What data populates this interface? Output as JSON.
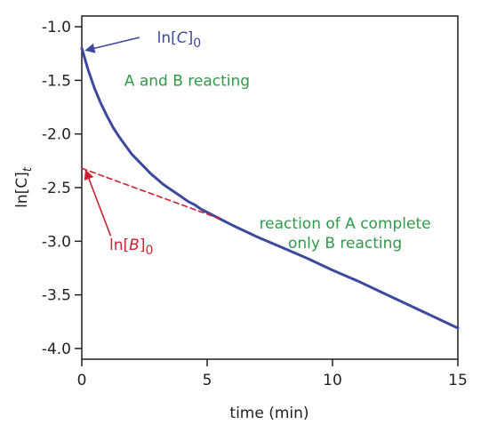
{
  "chart_data": {
    "type": "line",
    "title": "",
    "xlabel": "time (min)",
    "ylabel_main": "ln[C]",
    "ylabel_sub": "t",
    "xlim": [
      0,
      15
    ],
    "ylim": [
      -4.1,
      -0.9
    ],
    "x_ticks": [
      0,
      5,
      10,
      15
    ],
    "x_tick_labels": [
      "0",
      "5",
      "10",
      "15"
    ],
    "y_ticks": [
      -1.0,
      -1.5,
      -2.0,
      -2.5,
      -3.0,
      -3.5,
      -4.0
    ],
    "y_tick_labels": [
      "-1.0",
      "-1.5",
      "-2.0",
      "-2.5",
      "-3.0",
      "-3.5",
      "-4.0"
    ],
    "grid": false,
    "series": [
      {
        "style": "solid",
        "color": "#3c4a9e",
        "x": [
          0,
          0.25,
          0.5,
          0.75,
          1,
          1.25,
          1.5,
          1.75,
          2,
          2.25,
          2.5,
          2.75,
          3,
          3.25,
          3.5,
          3.75,
          4,
          4.25,
          4.5,
          4.75,
          5,
          5.5,
          6,
          7,
          8,
          9,
          10,
          11,
          12,
          13,
          14,
          15
        ],
        "y": [
          -1.2,
          -1.4,
          -1.57,
          -1.71,
          -1.83,
          -1.94,
          -2.03,
          -2.11,
          -2.19,
          -2.25,
          -2.31,
          -2.37,
          -2.42,
          -2.47,
          -2.51,
          -2.55,
          -2.59,
          -2.63,
          -2.66,
          -2.7,
          -2.73,
          -2.79,
          -2.85,
          -2.96,
          -3.06,
          -3.16,
          -3.27,
          -3.37,
          -3.48,
          -3.59,
          -3.7,
          -3.81
        ]
      },
      {
        "style": "dashed",
        "color": "#d0202f",
        "x": [
          0,
          5.5
        ],
        "y": [
          -2.32,
          -2.79
        ]
      }
    ],
    "annotations": [
      {
        "pre": "ln[",
        "italic": "C",
        "post": "]",
        "sub": "0",
        "color": "#3c4a9e",
        "point": [
          0.05,
          -1.22
        ],
        "arrow_from": [
          2.3,
          -1.1
        ],
        "text_at": [
          3.0,
          -1.15
        ]
      },
      {
        "pre": "ln[",
        "italic": "B",
        "post": "]",
        "sub": "0",
        "color": "#d0202f",
        "point": [
          0.05,
          -2.34
        ],
        "arrow_from": [
          1.15,
          -2.95
        ],
        "text_at": [
          1.1,
          -3.08
        ]
      }
    ],
    "labels": [
      {
        "lines": [
          "A and B reacting"
        ],
        "color": "#2f9a49",
        "at": [
          4.2,
          -1.55
        ]
      },
      {
        "lines": [
          "reaction of A complete",
          "only B reacting"
        ],
        "color": "#2f9a49",
        "at": [
          10.5,
          -2.88
        ]
      }
    ]
  }
}
